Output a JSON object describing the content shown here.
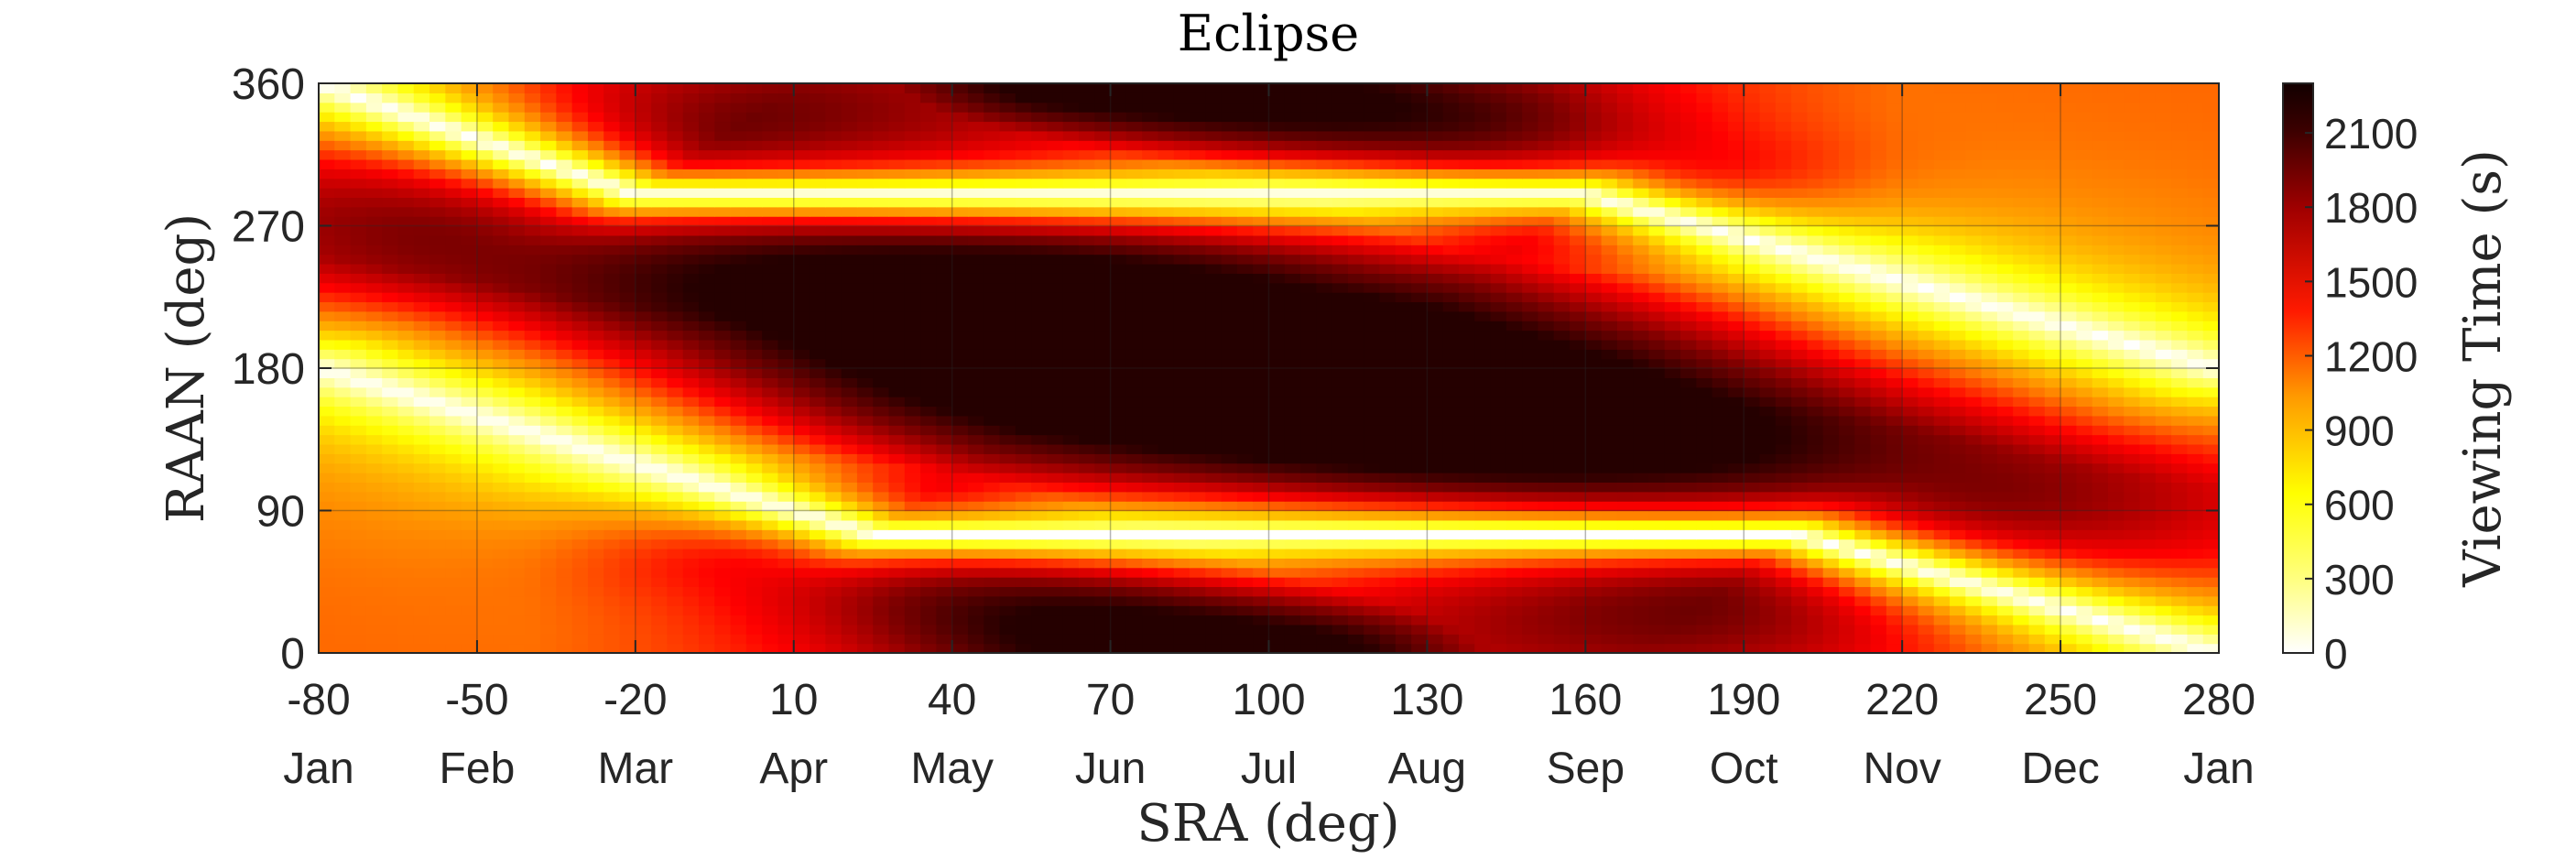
{
  "chart_data": {
    "type": "heatmap",
    "title": "Eclipse",
    "xlabel": "SRA (deg)",
    "ylabel": "RAAN (deg)",
    "xlim": [
      -80,
      280
    ],
    "ylim": [
      0,
      360
    ],
    "x_ticks": [
      -80,
      -50,
      -20,
      10,
      40,
      70,
      100,
      130,
      160,
      190,
      220,
      250,
      280
    ],
    "x_tick_labels": [
      "-80",
      "-50",
      "-20",
      "10",
      "40",
      "70",
      "100",
      "130",
      "160",
      "190",
      "220",
      "250",
      "280"
    ],
    "x_secondary_tick_labels": [
      "Jan",
      "Feb",
      "Mar",
      "Apr",
      "May",
      "Jun",
      "Jul",
      "Aug",
      "Sep",
      "Oct",
      "Nov",
      "Dec",
      "Jan"
    ],
    "y_ticks": [
      0,
      90,
      180,
      270,
      360
    ],
    "y_tick_labels": [
      "0",
      "90",
      "180",
      "270",
      "360"
    ],
    "grid": true,
    "colorbar": {
      "label": "Viewing Time (s)",
      "range": [
        0,
        2300
      ],
      "ticks": [
        0,
        300,
        600,
        900,
        1200,
        1500,
        1800,
        2100
      ],
      "tick_labels": [
        "0",
        "300",
        "600",
        "900",
        "1200",
        "1500",
        "1800",
        "2100"
      ],
      "colormap": "hot (reversed)",
      "colors": [
        "#ffffff",
        "#ffff00",
        "#ff8000",
        "#ff0000",
        "#800000",
        "#1a0000"
      ]
    },
    "features": {
      "zero_eclipse_ridges": [
        {
          "points": [
            [
              -80,
              360
            ],
            [
              -20,
              290
            ],
            [
              160,
              290
            ],
            [
              280,
              180
            ]
          ]
        },
        {
          "points": [
            [
              -80,
              180
            ],
            [
              25,
              75
            ],
            [
              200,
              75
            ],
            [
              280,
              0
            ]
          ]
        }
      ],
      "max_eclipse_band": {
        "points": [
          [
            -20,
            290
          ],
          [
            40,
            240
          ],
          [
            70,
            195
          ],
          [
            130,
            150
          ],
          [
            160,
            120
          ],
          [
            200,
            75
          ]
        ],
        "peak_value": 2250
      },
      "secondary_dark_lobes": [
        {
          "points": [
            [
              25,
              75
            ],
            [
              70,
              20
            ],
            [
              95,
              0
            ]
          ]
        },
        {
          "points": [
            [
              70,
              360
            ],
            [
              130,
              325
            ],
            [
              160,
              290
            ]
          ]
        }
      ]
    }
  }
}
